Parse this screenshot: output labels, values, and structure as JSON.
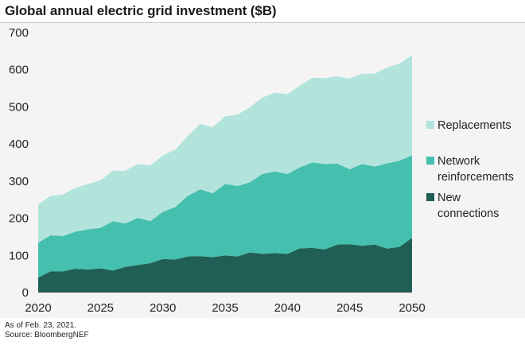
{
  "chart_data": {
    "type": "area",
    "stacked": true,
    "title": "Global annual electric grid investment ($B)",
    "x": [
      2020,
      2021,
      2022,
      2023,
      2024,
      2025,
      2026,
      2027,
      2028,
      2029,
      2030,
      2031,
      2032,
      2033,
      2034,
      2035,
      2036,
      2037,
      2038,
      2039,
      2040,
      2041,
      2042,
      2043,
      2044,
      2045,
      2046,
      2047,
      2048,
      2049,
      2050
    ],
    "series": [
      {
        "name": "New connections",
        "color": "#1f5f55",
        "values": [
          38,
          55,
          55,
          62,
          60,
          63,
          57,
          67,
          72,
          77,
          88,
          87,
          95,
          96,
          93,
          98,
          95,
          106,
          102,
          104,
          102,
          117,
          118,
          114,
          127,
          128,
          124,
          127,
          116,
          121,
          145
        ]
      },
      {
        "name": "Network reinforcements",
        "color": "#45bfae",
        "values": [
          94,
          97,
          95,
          100,
          108,
          109,
          133,
          117,
          127,
          113,
          127,
          141,
          163,
          180,
          172,
          192,
          190,
          189,
          215,
          220,
          215,
          218,
          230,
          230,
          218,
          202,
          220,
          210,
          230,
          232,
          222
        ]
      },
      {
        "name": "Replacements",
        "color": "#b2e4dc",
        "values": [
          103,
          106,
          112,
          118,
          122,
          128,
          136,
          142,
          145,
          150,
          152,
          155,
          161,
          176,
          178,
          182,
          192,
          202,
          206,
          212,
          215,
          220,
          228,
          231,
          235,
          244,
          243,
          250,
          258,
          262,
          270
        ]
      }
    ],
    "xlim": [
      2020,
      2050
    ],
    "ylim": [
      0,
      700
    ],
    "x_ticks": [
      "2020",
      "2025",
      "2030",
      "2035",
      "2040",
      "2045",
      "2050"
    ],
    "y_ticks": [
      "0",
      "100",
      "200",
      "300",
      "400",
      "500",
      "600",
      "700"
    ],
    "grid": false,
    "legend_position": "right",
    "legend_order": [
      "Replacements",
      "Network reinforcements",
      "New connections"
    ],
    "legend_lines": {
      "Replacements": [
        "Replacements"
      ],
      "Network reinforcements": [
        "Network",
        "reinforcements"
      ],
      "New connections": [
        "New",
        "connections"
      ]
    }
  },
  "footer": {
    "as_of": "As of Feb. 23, 2021.",
    "source": "Source: BloombergNEF"
  }
}
